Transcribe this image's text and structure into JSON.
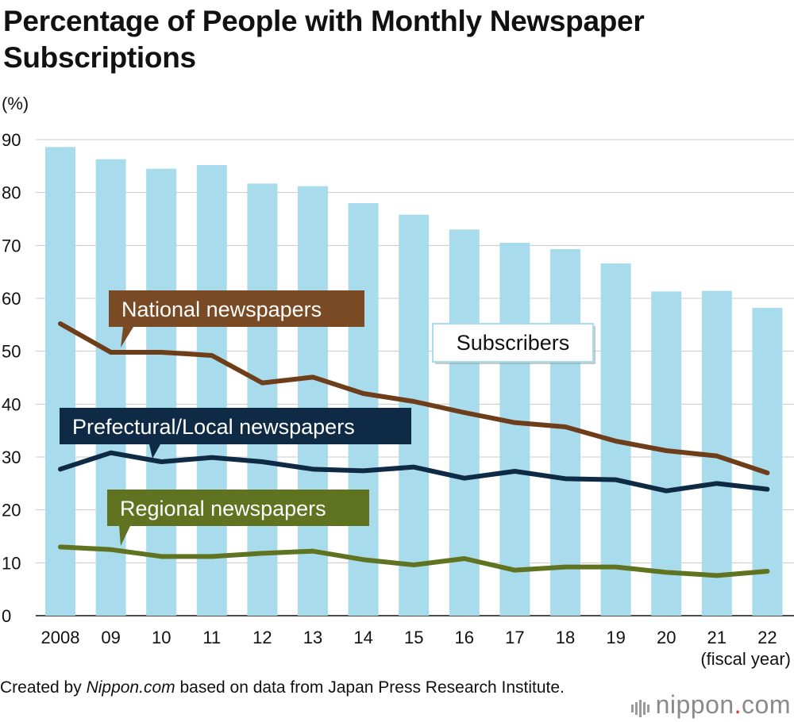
{
  "title": "Percentage of People with Monthly Newspaper Subscriptions",
  "source": {
    "prefix": "Created by ",
    "site": "Nippon.com",
    "suffix": " based on data from Japan Press Research Institute."
  },
  "brand": {
    "name": "nippon",
    "dot": ".",
    "tld": "com"
  },
  "chart_data": {
    "type": "bar+line",
    "ylabel": "(%)",
    "xlabel": "(fiscal year)",
    "ylim": [
      0,
      90
    ],
    "yticks": [
      0,
      10,
      20,
      30,
      40,
      50,
      60,
      70,
      80,
      90
    ],
    "grid": true,
    "categories": [
      "2008",
      "09",
      "10",
      "11",
      "12",
      "13",
      "14",
      "15",
      "16",
      "17",
      "18",
      "19",
      "20",
      "21",
      "22"
    ],
    "series": [
      {
        "name": "Subscribers",
        "kind": "bar",
        "color": "#a8dbeb",
        "values": [
          88.6,
          86.3,
          84.5,
          85.2,
          81.7,
          81.2,
          78.0,
          75.8,
          73.0,
          70.5,
          69.3,
          66.6,
          61.3,
          61.4,
          58.2
        ]
      },
      {
        "name": "National newspapers",
        "kind": "line",
        "color": "#6e3d1a",
        "label_color": "#7a4a24",
        "values": [
          55.2,
          49.8,
          49.8,
          49.2,
          44.0,
          45.1,
          42.0,
          40.5,
          38.4,
          36.5,
          35.7,
          33.0,
          31.2,
          30.2,
          27.0
        ]
      },
      {
        "name": "Prefectural/Local newspapers",
        "kind": "line",
        "color": "#0e2a45",
        "label_color": "#0e2a45",
        "values": [
          27.7,
          30.8,
          29.1,
          29.9,
          29.1,
          27.7,
          27.4,
          28.1,
          26.0,
          27.3,
          25.9,
          25.7,
          23.6,
          25.0,
          23.9
        ]
      },
      {
        "name": "Regional newspapers",
        "kind": "line",
        "color": "#5f7320",
        "label_color": "#5f7320",
        "values": [
          13.0,
          12.5,
          11.2,
          11.2,
          11.8,
          12.2,
          10.6,
          9.6,
          10.8,
          8.6,
          9.2,
          9.2,
          8.2,
          7.6,
          8.4
        ]
      }
    ]
  }
}
